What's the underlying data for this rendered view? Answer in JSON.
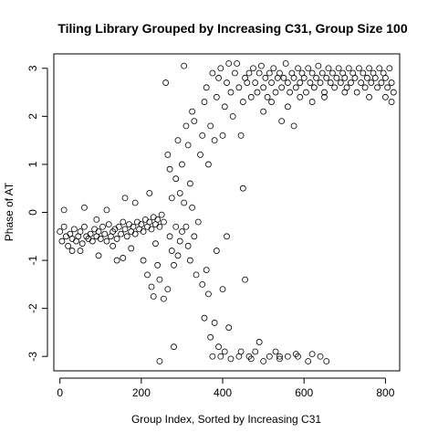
{
  "chart_data": {
    "type": "scatter",
    "title": "Tiling Library Grouped by Increasing C31, Group Size 100",
    "xlabel": "Group Index, Sorted by Increasing C31",
    "ylabel": "Phase of AT",
    "xlim": [
      -15,
      835
    ],
    "ylim": [
      -3.3,
      3.3
    ],
    "xticks": [
      0,
      200,
      400,
      600,
      800
    ],
    "yticks": [
      -3,
      -2,
      -1,
      0,
      1,
      2,
      3
    ],
    "xtick_labels": [
      "0",
      "200",
      "400",
      "600",
      "800"
    ],
    "ytick_labels": [
      "-3",
      "-2",
      "-1",
      "0",
      "1",
      "2",
      "3"
    ],
    "marker": "open-circle",
    "marker_color": "#000000",
    "grid": false,
    "legend": "none",
    "series": [
      {
        "points": [
          [
            0,
            -0.4
          ],
          [
            5,
            -0.6
          ],
          [
            10,
            -0.3
          ],
          [
            15,
            -0.5
          ],
          [
            20,
            -0.7
          ],
          [
            25,
            -0.45
          ],
          [
            30,
            -0.55
          ],
          [
            35,
            -0.35
          ],
          [
            40,
            -0.6
          ],
          [
            45,
            -0.5
          ],
          [
            50,
            -0.4
          ],
          [
            55,
            -0.65
          ],
          [
            60,
            -0.3
          ],
          [
            65,
            -0.5
          ],
          [
            70,
            -0.55
          ],
          [
            75,
            -0.45
          ],
          [
            80,
            -0.6
          ],
          [
            85,
            -0.35
          ],
          [
            90,
            -0.5
          ],
          [
            95,
            -0.4
          ],
          [
            100,
            -0.55
          ],
          [
            105,
            -0.3
          ],
          [
            110,
            -0.45
          ],
          [
            115,
            -0.6
          ],
          [
            120,
            -0.25
          ],
          [
            125,
            -0.5
          ],
          [
            130,
            -0.4
          ],
          [
            135,
            -0.35
          ],
          [
            140,
            -0.55
          ],
          [
            145,
            -0.3
          ],
          [
            150,
            -0.45
          ],
          [
            155,
            -0.2
          ],
          [
            160,
            -0.35
          ],
          [
            165,
            -0.5
          ],
          [
            170,
            -0.25
          ],
          [
            175,
            -0.4
          ],
          [
            180,
            -0.3
          ],
          [
            185,
            -0.45
          ],
          [
            190,
            -0.2
          ],
          [
            195,
            -0.35
          ],
          [
            200,
            -0.25
          ],
          [
            205,
            -0.4
          ],
          [
            210,
            -0.15
          ],
          [
            215,
            -0.3
          ],
          [
            220,
            -0.2
          ],
          [
            225,
            -0.35
          ],
          [
            230,
            -0.1
          ],
          [
            235,
            -0.25
          ],
          [
            240,
            -0.15
          ],
          [
            245,
            -0.3
          ],
          [
            250,
            -0.05
          ],
          [
            255,
            -0.2
          ],
          [
            10,
            0.05
          ],
          [
            30,
            -0.8
          ],
          [
            60,
            0.1
          ],
          [
            95,
            -0.9
          ],
          [
            115,
            0.05
          ],
          [
            140,
            -1.0
          ],
          [
            160,
            0.3
          ],
          [
            175,
            -0.75
          ],
          [
            185,
            0.2
          ],
          [
            205,
            -1.0
          ],
          [
            220,
            0.4
          ],
          [
            235,
            -0.65
          ],
          [
            90,
            -0.15
          ],
          [
            130,
            -0.7
          ],
          [
            50,
            -0.8
          ],
          [
            155,
            -0.95
          ],
          [
            215,
            -1.3
          ],
          [
            225,
            -1.55
          ],
          [
            230,
            -1.75
          ],
          [
            240,
            -1.1
          ],
          [
            245,
            -1.4
          ],
          [
            255,
            -1.8
          ],
          [
            265,
            -1.6
          ],
          [
            270,
            -0.5
          ],
          [
            275,
            -0.8
          ],
          [
            280,
            -1.1
          ],
          [
            285,
            -0.3
          ],
          [
            290,
            -0.9
          ],
          [
            295,
            -0.6
          ],
          [
            300,
            -0.4
          ],
          [
            280,
            -2.8
          ],
          [
            245,
            -3.1
          ],
          [
            260,
            2.7
          ],
          [
            265,
            1.2
          ],
          [
            270,
            0.9
          ],
          [
            275,
            0.3
          ],
          [
            285,
            0.7
          ],
          [
            290,
            1.5
          ],
          [
            295,
            0.4
          ],
          [
            300,
            1.0
          ],
          [
            305,
            3.05
          ],
          [
            310,
            1.8
          ],
          [
            315,
            1.4
          ],
          [
            320,
            0.6
          ],
          [
            325,
            2.1
          ],
          [
            330,
            1.9
          ],
          [
            305,
            0.2
          ],
          [
            310,
            -0.3
          ],
          [
            315,
            -0.7
          ],
          [
            320,
            -1.0
          ],
          [
            325,
            0.1
          ],
          [
            330,
            -0.5
          ],
          [
            335,
            -1.3
          ],
          [
            340,
            -0.2
          ],
          [
            345,
            1.2
          ],
          [
            350,
            1.6
          ],
          [
            355,
            2.3
          ],
          [
            360,
            2.6
          ],
          [
            365,
            1.0
          ],
          [
            370,
            1.8
          ],
          [
            375,
            2.9
          ],
          [
            380,
            1.5
          ],
          [
            350,
            -1.5
          ],
          [
            355,
            -2.2
          ],
          [
            360,
            -1.2
          ],
          [
            365,
            -1.7
          ],
          [
            370,
            -2.6
          ],
          [
            375,
            -3.0
          ],
          [
            380,
            -2.3
          ],
          [
            385,
            2.4
          ],
          [
            390,
            2.8
          ],
          [
            395,
            3.0
          ],
          [
            400,
            1.6
          ],
          [
            405,
            2.2
          ],
          [
            410,
            2.7
          ],
          [
            415,
            3.1
          ],
          [
            420,
            2.5
          ],
          [
            385,
            -0.8
          ],
          [
            390,
            -2.8
          ],
          [
            395,
            -3.0
          ],
          [
            400,
            -1.6
          ],
          [
            405,
            -2.9
          ],
          [
            410,
            -0.5
          ],
          [
            415,
            -2.4
          ],
          [
            420,
            -3.05
          ],
          [
            425,
            2.0
          ],
          [
            430,
            2.9
          ],
          [
            435,
            3.1
          ],
          [
            440,
            2.6
          ],
          [
            445,
            1.6
          ],
          [
            450,
            2.3
          ],
          [
            455,
            2.8
          ],
          [
            460,
            2.7
          ],
          [
            440,
            -3.0
          ],
          [
            445,
            -2.9
          ],
          [
            450,
            0.5
          ],
          [
            455,
            -1.4
          ],
          [
            465,
            -3.0
          ],
          [
            470,
            -3.05
          ],
          [
            480,
            -2.9
          ],
          [
            490,
            -2.7
          ],
          [
            465,
            2.9
          ],
          [
            470,
            2.4
          ],
          [
            475,
            3.0
          ],
          [
            480,
            2.7
          ],
          [
            485,
            2.5
          ],
          [
            490,
            2.9
          ],
          [
            495,
            3.05
          ],
          [
            500,
            2.6
          ],
          [
            505,
            2.8
          ],
          [
            510,
            2.4
          ],
          [
            515,
            2.9
          ],
          [
            520,
            2.7
          ],
          [
            525,
            3.0
          ],
          [
            530,
            2.5
          ],
          [
            535,
            2.8
          ],
          [
            540,
            2.9
          ],
          [
            545,
            2.6
          ],
          [
            550,
            2.8
          ],
          [
            555,
            3.1
          ],
          [
            560,
            2.7
          ],
          [
            565,
            2.5
          ],
          [
            570,
            2.9
          ],
          [
            575,
            2.8
          ],
          [
            580,
            2.6
          ],
          [
            585,
            3.0
          ],
          [
            590,
            2.7
          ],
          [
            595,
            2.9
          ],
          [
            600,
            2.8
          ],
          [
            605,
            2.5
          ],
          [
            610,
            3.0
          ],
          [
            615,
            2.7
          ],
          [
            620,
            2.9
          ],
          [
            625,
            2.6
          ],
          [
            630,
            2.8
          ],
          [
            635,
            3.05
          ],
          [
            640,
            2.7
          ],
          [
            645,
            2.9
          ],
          [
            650,
            2.5
          ],
          [
            655,
            2.8
          ],
          [
            660,
            3.0
          ],
          [
            665,
            2.7
          ],
          [
            670,
            2.9
          ],
          [
            675,
            2.6
          ],
          [
            680,
            2.8
          ],
          [
            685,
            3.0
          ],
          [
            690,
            2.7
          ],
          [
            695,
            2.9
          ],
          [
            700,
            2.8
          ],
          [
            705,
            2.6
          ],
          [
            710,
            3.0
          ],
          [
            715,
            2.7
          ],
          [
            720,
            2.9
          ],
          [
            725,
            2.8
          ],
          [
            730,
            2.5
          ],
          [
            735,
            3.0
          ],
          [
            740,
            2.7
          ],
          [
            745,
            2.9
          ],
          [
            750,
            2.6
          ],
          [
            755,
            2.8
          ],
          [
            760,
            3.0
          ],
          [
            765,
            2.7
          ],
          [
            770,
            2.9
          ],
          [
            775,
            2.8
          ],
          [
            780,
            2.6
          ],
          [
            785,
            3.0
          ],
          [
            790,
            2.7
          ],
          [
            795,
            2.9
          ],
          [
            800,
            2.8
          ],
          [
            805,
            2.6
          ],
          [
            810,
            3.0
          ],
          [
            815,
            2.7
          ],
          [
            820,
            2.5
          ],
          [
            500,
            2.1
          ],
          [
            520,
            2.3
          ],
          [
            545,
            1.9
          ],
          [
            560,
            2.2
          ],
          [
            575,
            1.8
          ],
          [
            590,
            2.4
          ],
          [
            620,
            2.3
          ],
          [
            650,
            2.4
          ],
          [
            700,
            2.5
          ],
          [
            760,
            2.4
          ],
          [
            800,
            2.4
          ],
          [
            815,
            2.3
          ],
          [
            500,
            -3.1
          ],
          [
            515,
            -3.0
          ],
          [
            530,
            -2.9
          ],
          [
            540,
            -3.05
          ],
          [
            560,
            -3.0
          ],
          [
            580,
            -2.95
          ],
          [
            610,
            -3.1
          ],
          [
            620,
            -2.95
          ],
          [
            640,
            -3.0
          ],
          [
            655,
            -3.1
          ],
          [
            540,
            -3.0
          ],
          [
            585,
            -3.0
          ]
        ]
      }
    ]
  }
}
